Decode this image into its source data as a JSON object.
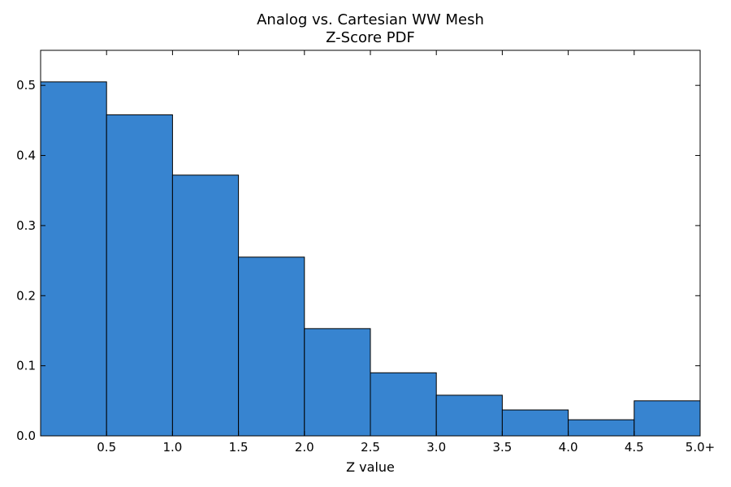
{
  "chart_data": {
    "type": "bar",
    "title": [
      "Analog vs. Cartesian WW Mesh",
      "Z-Score PDF"
    ],
    "xlabel": "Z value",
    "ylabel": "",
    "bins": [
      {
        "from": 0.0,
        "to": 0.5,
        "value": 0.505
      },
      {
        "from": 0.5,
        "to": 1.0,
        "value": 0.458
      },
      {
        "from": 1.0,
        "to": 1.5,
        "value": 0.372
      },
      {
        "from": 1.5,
        "to": 2.0,
        "value": 0.255
      },
      {
        "from": 2.0,
        "to": 2.5,
        "value": 0.153
      },
      {
        "from": 2.5,
        "to": 3.0,
        "value": 0.09
      },
      {
        "from": 3.0,
        "to": 3.5,
        "value": 0.058
      },
      {
        "from": 3.5,
        "to": 4.0,
        "value": 0.037
      },
      {
        "from": 4.0,
        "to": 4.5,
        "value": 0.023
      },
      {
        "from": 4.5,
        "to": 5.0,
        "value": 0.05
      }
    ],
    "xlim": [
      0,
      5
    ],
    "ylim": [
      0,
      0.55
    ],
    "x_ticks": [
      {
        "value": 0.5,
        "label": "0.5"
      },
      {
        "value": 1.0,
        "label": "1.0"
      },
      {
        "value": 1.5,
        "label": "1.5"
      },
      {
        "value": 2.0,
        "label": "2.0"
      },
      {
        "value": 2.5,
        "label": "2.5"
      },
      {
        "value": 3.0,
        "label": "3.0"
      },
      {
        "value": 3.5,
        "label": "3.5"
      },
      {
        "value": 4.0,
        "label": "4.0"
      },
      {
        "value": 4.5,
        "label": "4.5"
      },
      {
        "value": 5.0,
        "label": "5.0+"
      }
    ],
    "y_ticks": [
      {
        "value": 0.0,
        "label": "0.0"
      },
      {
        "value": 0.1,
        "label": "0.1"
      },
      {
        "value": 0.2,
        "label": "0.2"
      },
      {
        "value": 0.3,
        "label": "0.3"
      },
      {
        "value": 0.4,
        "label": "0.4"
      },
      {
        "value": 0.5,
        "label": "0.5"
      }
    ],
    "grid": false,
    "legend": "none",
    "bar_color": "#3784d0",
    "edge_color": "#000000"
  }
}
